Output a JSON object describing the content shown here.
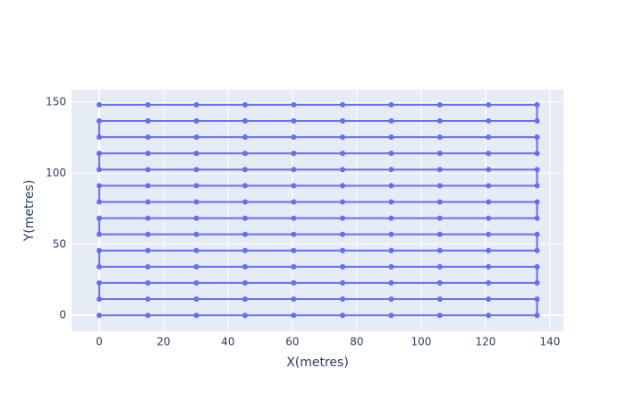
{
  "chart_data": {
    "type": "line",
    "x_label": "X(metres)",
    "y_label": "Y(metres)",
    "series": [
      {
        "color": "#636efa",
        "x": [
          0,
          15.1,
          30.2,
          45.3,
          60.4,
          75.6,
          90.7,
          105.8,
          120.9,
          136,
          136,
          120.9,
          105.8,
          90.7,
          75.6,
          60.4,
          45.3,
          30.2,
          15.1,
          0,
          0,
          15.1,
          30.2,
          45.3,
          60.4,
          75.6,
          90.7,
          105.8,
          120.9,
          136,
          136,
          120.9,
          105.8,
          90.7,
          75.6,
          60.4,
          45.3,
          30.2,
          15.1,
          0,
          0,
          15.1,
          30.2,
          45.3,
          60.4,
          75.6,
          90.7,
          105.8,
          120.9,
          136,
          136,
          120.9,
          105.8,
          90.7,
          75.6,
          60.4,
          45.3,
          30.2,
          15.1,
          0,
          0,
          15.1,
          30.2,
          45.3,
          60.4,
          75.6,
          90.7,
          105.8,
          120.9,
          136,
          136,
          120.9,
          105.8,
          90.7,
          75.6,
          60.4,
          45.3,
          30.2,
          15.1,
          0,
          0,
          15.1,
          30.2,
          45.3,
          60.4,
          75.6,
          90.7,
          105.8,
          120.9,
          136,
          136,
          120.9,
          105.8,
          90.7,
          75.6,
          60.4,
          45.3,
          30.2,
          15.1,
          0,
          0,
          15.1,
          30.2,
          45.3,
          60.4,
          75.6,
          90.7,
          105.8,
          120.9,
          136,
          136,
          120.9,
          105.8,
          90.7,
          75.6,
          60.4,
          45.3,
          30.2,
          15.1,
          0,
          0,
          15.1,
          30.2,
          45.3,
          60.4,
          75.6,
          90.7,
          105.8,
          120.9,
          136,
          136,
          120.9,
          105.8,
          90.7,
          75.6,
          60.4,
          45.3,
          30.2,
          15.1,
          0
        ],
        "values": [
          0,
          0,
          0,
          0,
          0,
          0,
          0,
          0,
          0,
          0,
          11.4,
          11.4,
          11.4,
          11.4,
          11.4,
          11.4,
          11.4,
          11.4,
          11.4,
          11.4,
          22.8,
          22.8,
          22.8,
          22.8,
          22.8,
          22.8,
          22.8,
          22.8,
          22.8,
          22.8,
          34.2,
          34.2,
          34.2,
          34.2,
          34.2,
          34.2,
          34.2,
          34.2,
          34.2,
          34.2,
          45.6,
          45.6,
          45.6,
          45.6,
          45.6,
          45.6,
          45.6,
          45.6,
          45.6,
          45.6,
          57,
          57,
          57,
          57,
          57,
          57,
          57,
          57,
          57,
          57,
          68.4,
          68.4,
          68.4,
          68.4,
          68.4,
          68.4,
          68.4,
          68.4,
          68.4,
          68.4,
          79.8,
          79.8,
          79.8,
          79.8,
          79.8,
          79.8,
          79.8,
          79.8,
          79.8,
          79.8,
          91.2,
          91.2,
          91.2,
          91.2,
          91.2,
          91.2,
          91.2,
          91.2,
          91.2,
          91.2,
          102.6,
          102.6,
          102.6,
          102.6,
          102.6,
          102.6,
          102.6,
          102.6,
          102.6,
          102.6,
          114,
          114,
          114,
          114,
          114,
          114,
          114,
          114,
          114,
          114,
          125.4,
          125.4,
          125.4,
          125.4,
          125.4,
          125.4,
          125.4,
          125.4,
          125.4,
          125.4,
          136.8,
          136.8,
          136.8,
          136.8,
          136.8,
          136.8,
          136.8,
          136.8,
          136.8,
          136.8,
          148.2,
          148.2,
          148.2,
          148.2,
          148.2,
          148.2,
          148.2,
          148.2,
          148.2,
          148.2
        ]
      }
    ],
    "xlim": [
      -8.6,
      144.2
    ],
    "xticks": [
      0,
      20,
      40,
      60,
      80,
      100,
      120,
      140
    ],
    "ylim": [
      -11.3,
      158.9
    ],
    "yticks": [
      0,
      50,
      100,
      150
    ],
    "grid": true,
    "background": "#e5ecf6"
  }
}
